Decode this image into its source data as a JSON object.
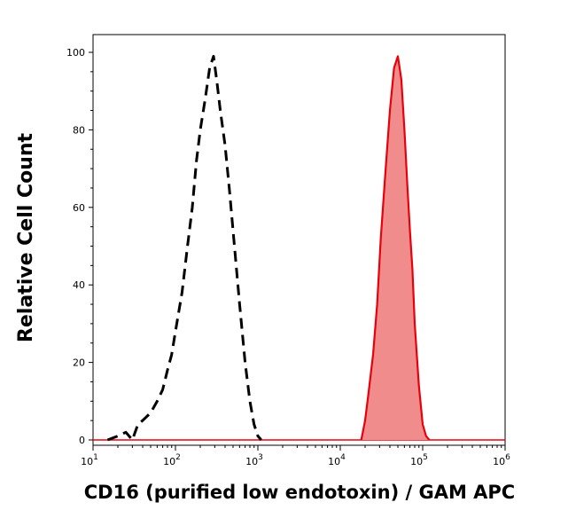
{
  "chart_data": {
    "type": "area",
    "xlabel": "CD16 (purified low endotoxin) / GAM APC",
    "ylabel": "Relative Cell Count",
    "x_scale": "log",
    "xlim": [
      10,
      1000000
    ],
    "ylim": [
      0,
      100
    ],
    "x_ticks": [
      {
        "base": "10",
        "exp": "1",
        "value": 10
      },
      {
        "base": "10",
        "exp": "2",
        "value": 100
      },
      {
        "base": "10",
        "exp": "3",
        "value": 1000
      },
      {
        "base": "10",
        "exp": "4",
        "value": 10000
      },
      {
        "base": "10",
        "exp": "5",
        "value": 100000
      },
      {
        "base": "10",
        "exp": "6",
        "value": 1000000
      }
    ],
    "y_ticks": [
      "0",
      "20",
      "40",
      "60",
      "80",
      "100"
    ],
    "series": [
      {
        "style": "dashed",
        "color": "#000000",
        "x": [
          15,
          20,
          25,
          30,
          35,
          40,
          50,
          60,
          70,
          80,
          90,
          100,
          120,
          140,
          160,
          180,
          200,
          230,
          260,
          290,
          320,
          350,
          400,
          450,
          500,
          550,
          600,
          700,
          800,
          900,
          1000,
          1100
        ],
        "y": [
          0,
          1,
          2,
          0,
          4,
          5,
          7,
          10,
          13,
          18,
          22,
          28,
          38,
          50,
          60,
          72,
          80,
          88,
          96,
          99,
          92,
          85,
          76,
          65,
          54,
          44,
          35,
          20,
          10,
          4,
          1,
          0
        ]
      },
      {
        "style": "filled",
        "color": "#e8000b",
        "fill": "#f08c8c",
        "x": [
          18000,
          20000,
          22000,
          25000,
          28000,
          31000,
          35000,
          40000,
          45000,
          50000,
          55000,
          60000,
          65000,
          70000,
          75000,
          80000,
          90000,
          100000,
          110000,
          120000
        ],
        "y": [
          0,
          5,
          12,
          22,
          35,
          52,
          68,
          85,
          96,
          99,
          93,
          80,
          66,
          54,
          44,
          30,
          14,
          4,
          1,
          0
        ]
      }
    ],
    "baseline_color": "#e8000b",
    "grid": false,
    "legend": "none"
  }
}
